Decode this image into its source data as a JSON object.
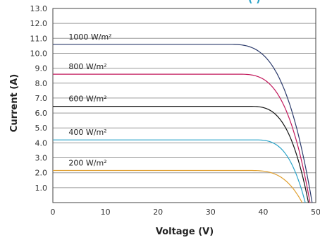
{
  "chart_data": {
    "type": "line",
    "xlabel": "Voltage (V)",
    "ylabel": "Current (A)",
    "xlim": [
      0,
      50
    ],
    "ylim": [
      0,
      13
    ],
    "x_ticks": [
      "0",
      "10",
      "20",
      "30",
      "40",
      "50"
    ],
    "y_ticks": [
      "1.0",
      "2.0",
      "3.0",
      "4.0",
      "5.0",
      "6.0",
      "7.0",
      "8.0",
      "9.0",
      "10.0",
      "11.0",
      "12.0",
      "13.0"
    ],
    "grid": true,
    "clipped_top_text": "(   )",
    "series": [
      {
        "name": "1000 W/m²",
        "color": "#2b3a6b",
        "isc": 10.6,
        "knee_v": 33,
        "voc": 49.3
      },
      {
        "name": "800 W/m²",
        "color": "#c2185b",
        "isc": 8.6,
        "knee_v": 35,
        "voc": 48.9
      },
      {
        "name": "600 W/m²",
        "color": "#111111",
        "isc": 6.45,
        "knee_v": 37,
        "voc": 48.6
      },
      {
        "name": "400 W/m²",
        "color": "#2aa3c9",
        "isc": 4.2,
        "knee_v": 38,
        "voc": 48.0
      },
      {
        "name": "200 W/m²",
        "color": "#e0a030",
        "isc": 2.15,
        "knee_v": 37,
        "voc": 47.4
      }
    ]
  }
}
